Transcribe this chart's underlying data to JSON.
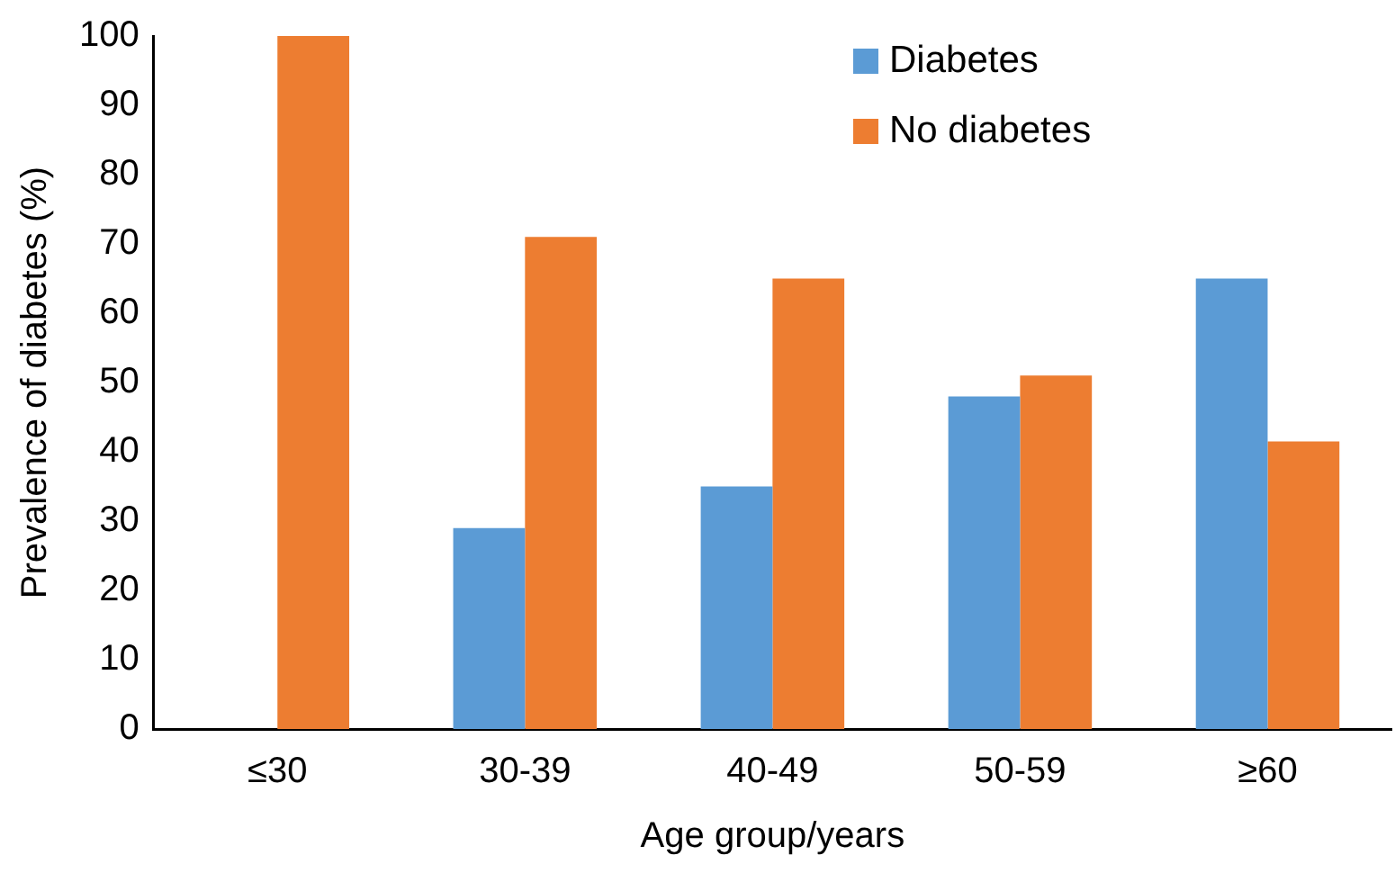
{
  "chart_data": {
    "type": "bar",
    "xlabel": "Age group/years",
    "ylabel": "Prevalence of diabetes (%)",
    "categories": [
      "≤30",
      "30-39",
      "40-49",
      "50-59",
      "≥60"
    ],
    "series": [
      {
        "name": "Diabetes",
        "color": "#5b9bd5",
        "values": [
          0,
          29,
          35,
          48,
          65
        ]
      },
      {
        "name": "No diabetes",
        "color": "#ed7d31",
        "values": [
          100,
          71,
          65,
          51,
          41.5
        ]
      }
    ],
    "ylim": [
      0,
      100
    ],
    "yticks": [
      0,
      10,
      20,
      30,
      40,
      50,
      60,
      70,
      80,
      90,
      100
    ],
    "grid": false,
    "legend": "top right"
  }
}
